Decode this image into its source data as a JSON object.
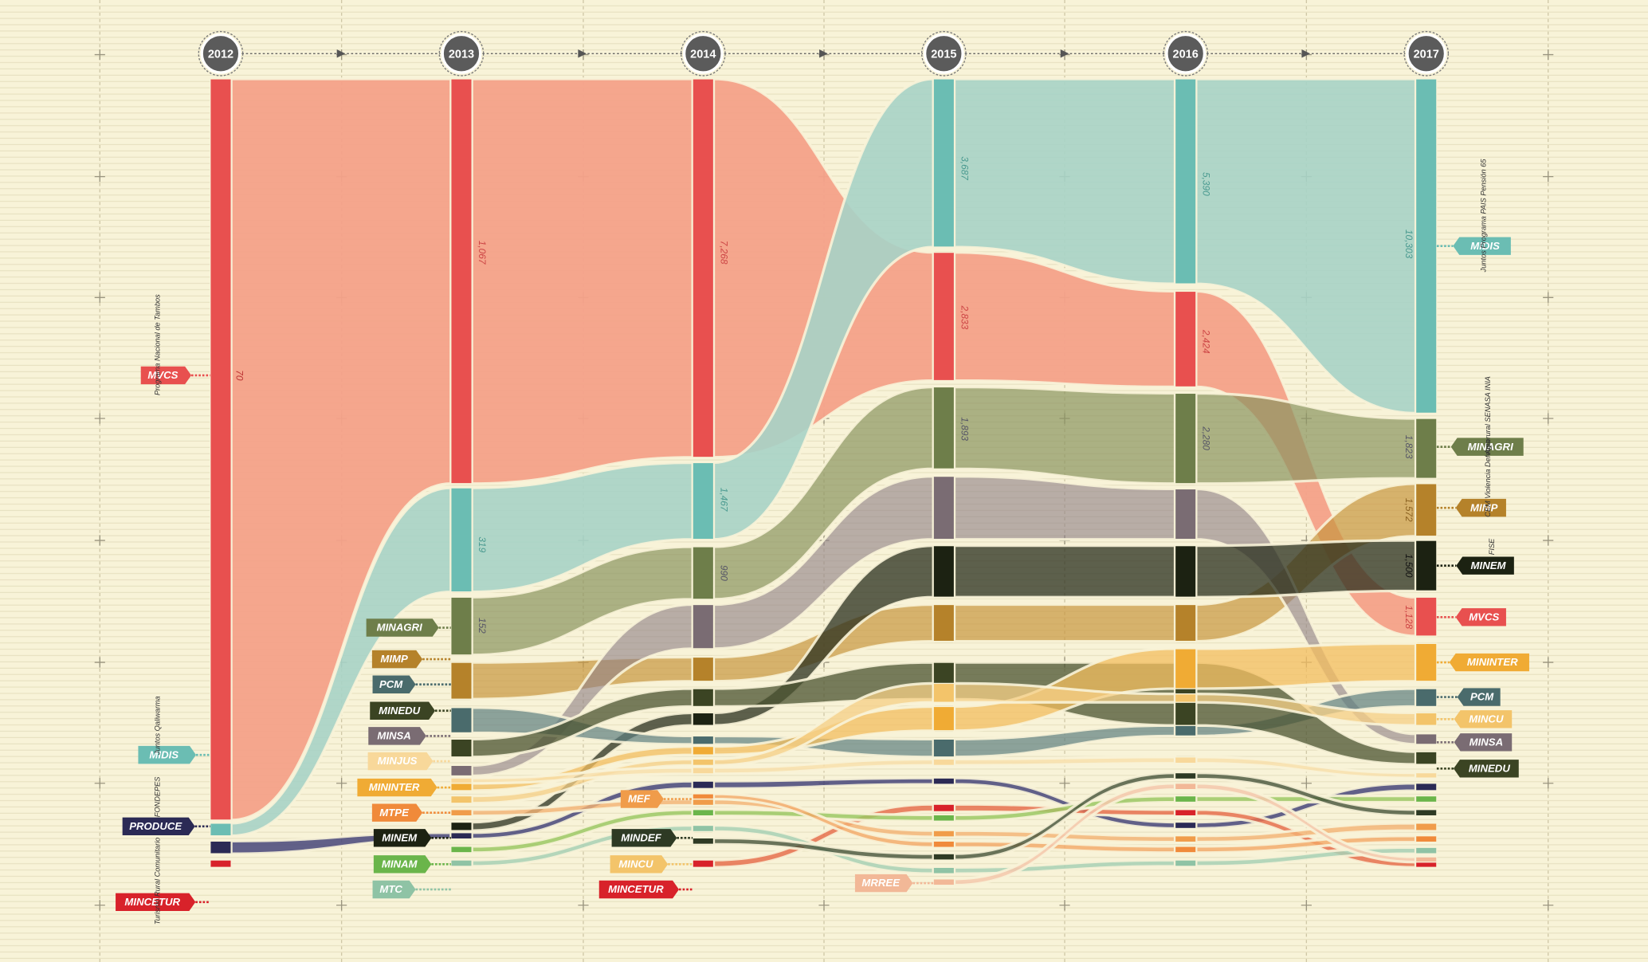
{
  "years": [
    "2012",
    "2013",
    "2014",
    "2015",
    "2016",
    "2017"
  ],
  "value_labels": [
    "70",
    "1,067",
    "319",
    "152",
    "7,268",
    "1,467",
    "990",
    "3,687",
    "2,833",
    "1,893",
    "5,390",
    "2,424",
    "2,280",
    "10,303",
    "1,823",
    "1,572",
    "1,500",
    "1,128"
  ],
  "tags": [
    {
      "label": "MVCS"
    },
    {
      "label": "MIDIS"
    },
    {
      "label": "PRODUCE"
    },
    {
      "label": "MINCETUR"
    },
    {
      "label": "MINAGRI"
    },
    {
      "label": "MIMP"
    },
    {
      "label": "PCM"
    },
    {
      "label": "MINEDU"
    },
    {
      "label": "MINSA"
    },
    {
      "label": "MINJUS"
    },
    {
      "label": "MININTER"
    },
    {
      "label": "MTPE"
    },
    {
      "label": "MINEM"
    },
    {
      "label": "MINAM"
    },
    {
      "label": "MTC"
    },
    {
      "label": "MEF"
    },
    {
      "label": "MINDEF"
    },
    {
      "label": "MINCU"
    },
    {
      "label": "MINCETUR"
    },
    {
      "label": "MRREE"
    },
    {
      "label": "MIDIS"
    },
    {
      "label": "MINAGRI"
    },
    {
      "label": "MIMP"
    },
    {
      "label": "MINEM"
    },
    {
      "label": "MVCS"
    },
    {
      "label": "MININTER"
    },
    {
      "label": "PCM"
    },
    {
      "label": "MINCU"
    },
    {
      "label": "MINSA"
    },
    {
      "label": "MINEDU"
    }
  ],
  "notes": [
    "Programa Nacional de Tambos",
    "Juntos Qaliwarma",
    "FONDEPES",
    "Turismo Rural Comunitario",
    "Juntos Programa PAIS Pensión 65",
    "Agrorural SENASA INIA",
    "CEM Violencia Defensa",
    "FISE"
  ]
}
